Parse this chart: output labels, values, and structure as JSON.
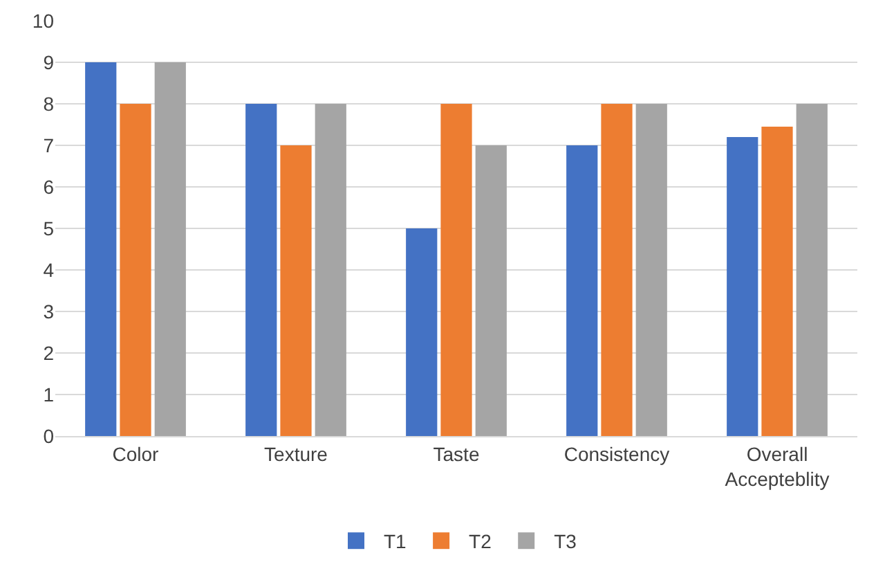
{
  "chart_data": {
    "type": "bar",
    "categories": [
      "Color",
      "Texture",
      "Taste",
      "Consistency",
      "Overall Accepteblity"
    ],
    "series": [
      {
        "name": "T1",
        "color": "#4472c4",
        "values": [
          9,
          8,
          5,
          7,
          7.2
        ]
      },
      {
        "name": "T2",
        "color": "#ed7d31",
        "values": [
          8,
          7,
          8,
          8,
          7.45
        ]
      },
      {
        "name": "T3",
        "color": "#a5a5a5",
        "values": [
          9,
          8,
          7,
          8,
          8
        ]
      }
    ],
    "ylim": [
      0,
      10
    ],
    "yticks": [
      0,
      1,
      2,
      3,
      4,
      5,
      6,
      7,
      8,
      9,
      10
    ],
    "grid": "y",
    "legend": "bottom"
  }
}
